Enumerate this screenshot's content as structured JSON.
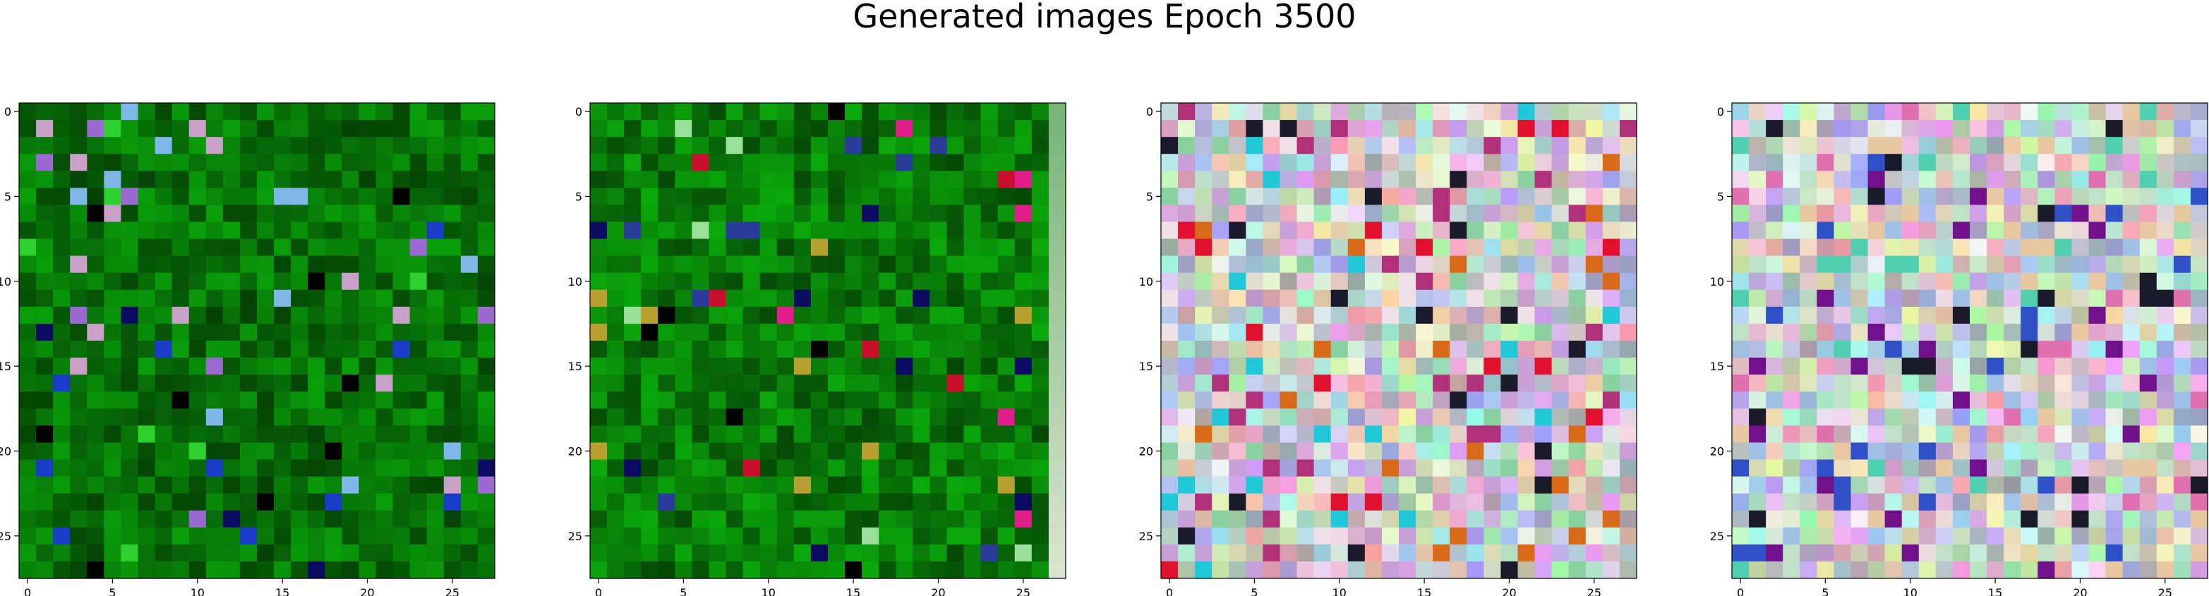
{
  "figure": {
    "title": "Generated images Epoch 3500"
  },
  "chart_data": [
    {
      "type": "heatmap",
      "grid_size": [
        28,
        28
      ],
      "xlim": [
        0,
        27
      ],
      "ylim": [
        27,
        0
      ],
      "x_ticks": [
        0,
        5,
        10,
        15,
        20,
        25
      ],
      "y_ticks": [
        0,
        5,
        10,
        15,
        20,
        25
      ],
      "palette": "green",
      "base_color": "#0c7a0c",
      "accent_colors": [
        "#000000",
        "#1b3cc8",
        "#7fb8e8",
        "#9a6ad0",
        "#c8a0c8",
        "#2ed02e",
        "#0a0a60"
      ]
    },
    {
      "type": "heatmap",
      "grid_size": [
        28,
        28
      ],
      "xlim": [
        0,
        27
      ],
      "ylim": [
        27,
        0
      ],
      "x_ticks": [
        0,
        5,
        10,
        15,
        20,
        25
      ],
      "y_ticks": [
        0,
        5,
        10,
        15,
        20,
        25
      ],
      "palette": "green",
      "base_color": "#0e820e",
      "accent_colors": [
        "#000000",
        "#c8102e",
        "#e01e8a",
        "#2a3c9a",
        "#b8a030",
        "#9ae09a",
        "#0a0a60"
      ]
    },
    {
      "type": "heatmap",
      "grid_size": [
        28,
        28
      ],
      "xlim": [
        0,
        27
      ],
      "ylim": [
        27,
        0
      ],
      "x_ticks": [
        0,
        5,
        10,
        15,
        20,
        25
      ],
      "y_ticks": [
        0,
        5,
        10,
        15,
        20,
        25
      ],
      "palette": "pastel",
      "base_color": "#d8c8dc",
      "accent_colors": [
        "#e0102e",
        "#d86a1a",
        "#b0307a",
        "#1a1a2a",
        "#20c8d8",
        "#f0e0e8",
        "#8ad0a0",
        "#c8a0d8"
      ]
    },
    {
      "type": "heatmap",
      "grid_size": [
        28,
        28
      ],
      "xlim": [
        0,
        27
      ],
      "ylim": [
        27,
        0
      ],
      "x_ticks": [
        0,
        5,
        10,
        15,
        20,
        25
      ],
      "y_ticks": [
        0,
        5,
        10,
        15,
        20,
        25
      ],
      "palette": "pastel",
      "base_color": "#d8d0e0",
      "accent_colors": [
        "#1a1a2a",
        "#3050c8",
        "#50d0b0",
        "#e070b0",
        "#a0c0e8",
        "#70108a",
        "#c0e0c8",
        "#e8c8a0"
      ]
    }
  ]
}
